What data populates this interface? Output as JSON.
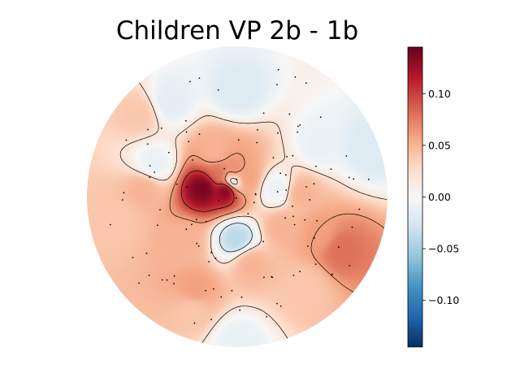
{
  "chart_data": {
    "type": "heatmap",
    "subtype": "topographic scalp map",
    "title": "Children VP 2b - 1b",
    "colormap": "RdBu_r",
    "vmin": -0.145,
    "vmax": 0.145,
    "colorbar": {
      "ticks": [
        0.1,
        0.05,
        0.0,
        -0.05,
        -0.1
      ],
      "tick_labels": [
        "0.10",
        "0.05",
        "0.00",
        "−0.05",
        "−0.10"
      ],
      "placement": "right"
    },
    "contours": true,
    "sensor_markers": true,
    "sources": [
      {
        "x": -0.22,
        "y": 0.06,
        "value": 0.14
      },
      {
        "x": -0.07,
        "y": 0.05,
        "value": 0.15
      },
      {
        "x": -0.12,
        "y": 0.15,
        "value": 0.08
      },
      {
        "x": -0.02,
        "y": 0.17,
        "value": 0.07
      },
      {
        "x": 0.06,
        "y": 0.12,
        "value": 0.06
      },
      {
        "x": -0.15,
        "y": 0.29,
        "value": 0.05
      },
      {
        "x": 0.69,
        "y": -0.35,
        "value": 0.08
      },
      {
        "x": 0.55,
        "y": -0.25,
        "value": 0.06
      },
      {
        "x": 0.42,
        "y": 0.02,
        "value": 0.05
      },
      {
        "x": -0.62,
        "y": 0.05,
        "value": 0.05
      },
      {
        "x": -0.35,
        "y": -0.3,
        "value": 0.05
      },
      {
        "x": -0.28,
        "y": -0.62,
        "value": 0.06
      },
      {
        "x": 0.09,
        "y": -0.44,
        "value": 0.05
      },
      {
        "x": 0.3,
        "y": -0.2,
        "value": 0.05
      },
      {
        "x": -0.8,
        "y": -0.15,
        "value": 0.04
      },
      {
        "x": -0.3,
        "y": -0.75,
        "value": 0.04
      },
      {
        "x": 0.45,
        "y": -0.6,
        "value": 0.04
      },
      {
        "x": -0.65,
        "y": 0.55,
        "value": 0.04
      },
      {
        "x": 0.0,
        "y": -0.28,
        "value": -0.04
      },
      {
        "x": 0.0,
        "y": 0.7,
        "value": -0.02
      },
      {
        "x": -0.45,
        "y": 0.63,
        "value": -0.015
      },
      {
        "x": -0.55,
        "y": 0.22,
        "value": -0.01
      },
      {
        "x": 0.55,
        "y": 0.34,
        "value": -0.01
      },
      {
        "x": 0.88,
        "y": 0.32,
        "value": -0.02
      },
      {
        "x": 0.0,
        "y": -0.96,
        "value": -0.01
      },
      {
        "x": -0.03,
        "y": 0.1,
        "value": -0.02
      },
      {
        "x": 0.26,
        "y": 0.05,
        "value": -0.01
      }
    ]
  }
}
